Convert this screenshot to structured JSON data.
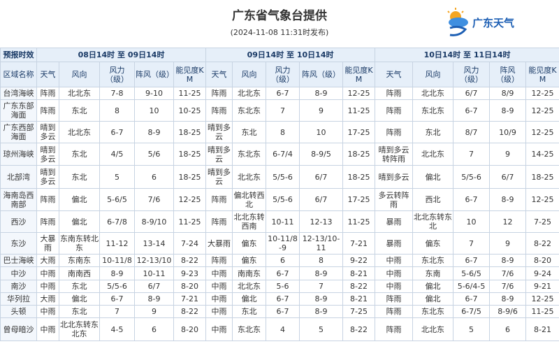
{
  "header": {
    "title": "广东省气象台提供",
    "subtitle": "(2024-11-08 11:31时发布)",
    "logo_text": "广东天气"
  },
  "table": {
    "group_row": [
      "预报时效",
      "08日14时 至 09日14时",
      "09日14时 至 10日14时",
      "10日14时 至 11日14时"
    ],
    "columns": [
      "区域名称",
      "天气",
      "风向",
      "风力（级）",
      "阵风（级）",
      "能见度KM",
      "天气",
      "风向",
      "风力（级）",
      "阵风（级）",
      "能见度KM",
      "天气",
      "风向",
      "风力（级）",
      "阵风（级）",
      "能见度KM"
    ],
    "rows": [
      [
        "台湾海峡",
        "阵雨",
        "北北东",
        "7-8",
        "9-10",
        "11-25",
        "阵雨",
        "北北东",
        "6-7",
        "8-9",
        "12-25",
        "阵雨",
        "北北东",
        "6/7",
        "8/9",
        "12-25"
      ],
      [
        "广东东部海面",
        "阵雨",
        "东北",
        "8",
        "10",
        "10-25",
        "阵雨",
        "东北东",
        "7",
        "9",
        "11-25",
        "阵雨",
        "东北东",
        "6-7",
        "8-9",
        "12-25"
      ],
      [
        "广东西部海面",
        "晴到多云",
        "北北东",
        "6-7",
        "8-9",
        "18-25",
        "晴到多云",
        "东北",
        "8",
        "10",
        "17-25",
        "阵雨",
        "东北",
        "8/7",
        "10/9",
        "12-25"
      ],
      [
        "琼州海峡",
        "晴到多云",
        "东北",
        "4/5",
        "5/6",
        "18-25",
        "晴到多云",
        "东北东",
        "6-7/4",
        "8-9/5",
        "18-25",
        "晴到多云转阵雨",
        "北北东",
        "7",
        "9",
        "14-25"
      ],
      [
        "北部湾",
        "晴到多云",
        "东北",
        "5",
        "6",
        "18-25",
        "晴到多云",
        "北北东",
        "5/5-6",
        "6/7",
        "18-25",
        "晴到多云",
        "偏北",
        "5/5-6",
        "6/7",
        "18-25"
      ],
      [
        "海南岛西南部",
        "阵雨",
        "偏北",
        "5-6/5",
        "7/6",
        "12-25",
        "阵雨",
        "偏北转西北",
        "5/5-6",
        "6/7",
        "17-25",
        "多云转阵雨",
        "西北",
        "6-7",
        "8-9",
        "12-25"
      ],
      [
        "西沙",
        "阵雨",
        "偏北",
        "6-7/8",
        "8-9/10",
        "11-25",
        "阵雨",
        "北北东转西南",
        "10-11",
        "12-13",
        "11-25",
        "暴雨",
        "北北东转东北",
        "10",
        "12",
        "7-25"
      ],
      [
        "东沙",
        "大暴雨",
        "东南东转北东",
        "11-12",
        "13-14",
        "7-24",
        "大暴雨",
        "偏东",
        "10-11/8-9",
        "12-13/10-11",
        "7-21",
        "暴雨",
        "偏东",
        "7",
        "9",
        "8-22"
      ],
      [
        "巴士海峡",
        "大雨",
        "东南东",
        "10-11/8",
        "12-13/10",
        "8-22",
        "阵雨",
        "偏东",
        "6",
        "8",
        "9-22",
        "中雨",
        "东北东",
        "6-7",
        "8-9",
        "8-20"
      ],
      [
        "中沙",
        "中雨",
        "南南西",
        "8-9",
        "10-11",
        "9-23",
        "中雨",
        "南南东",
        "6-7",
        "8-9",
        "8-21",
        "中雨",
        "东南",
        "5-6/5",
        "7/6",
        "9-24"
      ],
      [
        "南沙",
        "中雨",
        "东北",
        "5/5-6",
        "6/7",
        "8-20",
        "中雨",
        "北北东",
        "5-6",
        "7",
        "8-22",
        "中雨",
        "偏北",
        "5-6/4-5",
        "7/6",
        "9-21"
      ],
      [
        "华列拉",
        "大雨",
        "偏北",
        "6-7",
        "8-9",
        "7-21",
        "中雨",
        "偏北",
        "6-7",
        "8-9",
        "8-21",
        "阵雨",
        "偏北",
        "6-7",
        "8-9",
        "12-25"
      ],
      [
        "头顿",
        "中雨",
        "东北",
        "7",
        "9",
        "8-22",
        "中雨",
        "东北",
        "6-7",
        "8-9",
        "7-25",
        "阵雨",
        "东北东",
        "6-7/5",
        "8-9/6",
        "11-25"
      ],
      [
        "曾母暗沙",
        "中雨",
        "北北东转东北东",
        "4-5",
        "6",
        "8-20",
        "中雨",
        "东北东",
        "4",
        "5",
        "8-22",
        "阵雨",
        "北北东",
        "5",
        "6",
        "8-21"
      ]
    ]
  }
}
